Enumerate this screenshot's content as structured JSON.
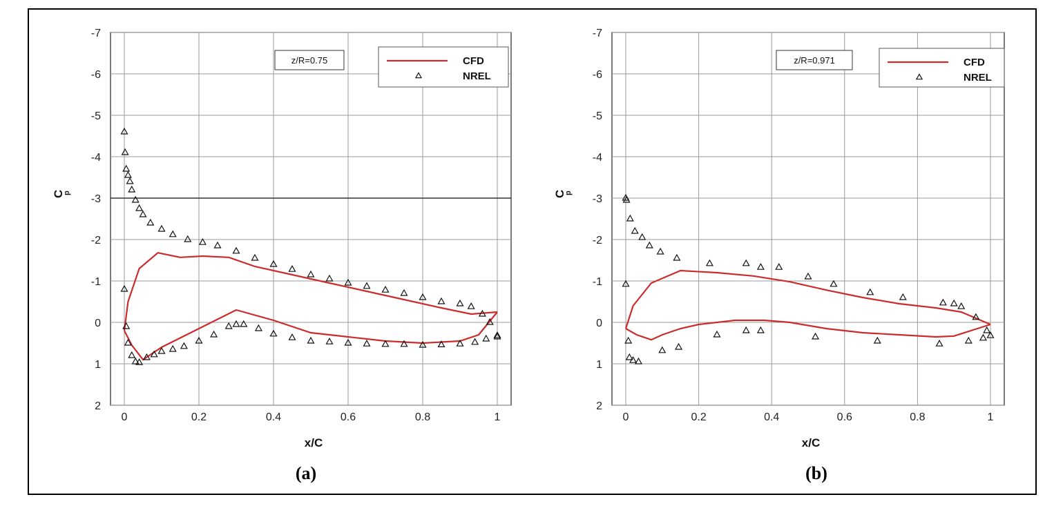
{
  "chart_data": [
    {
      "type": "line",
      "caption": "(a)",
      "xlabel": "x/C",
      "ylabel": "C",
      "ylabel_sub": "p",
      "annotation": "z/R=0.75",
      "xlim": [
        0,
        1
      ],
      "ylim": [
        2,
        -7
      ],
      "y_reversed": true,
      "grid": true,
      "legend_position": "top-right",
      "x_ticks": [
        "0",
        "0.2",
        "0.4",
        "0.6",
        "0.8",
        "1"
      ],
      "y_ticks": [
        "-7",
        "-6",
        "-5",
        "-4",
        "-3",
        "-2",
        "-1",
        "0",
        "1",
        "2"
      ],
      "colors": {
        "cfd": "#cc2b2b",
        "nrel": "#111111"
      },
      "series": [
        {
          "name": "CFD",
          "style": "line",
          "upper": {
            "x": [
              0,
              0.01,
              0.04,
              0.09,
              0.15,
              0.21,
              0.28,
              0.35,
              0.45,
              0.55,
              0.65,
              0.75,
              0.85,
              0.93,
              1.0
            ],
            "y": [
              0.2,
              -0.5,
              -1.3,
              -1.68,
              -1.57,
              -1.6,
              -1.57,
              -1.35,
              -1.15,
              -0.95,
              -0.75,
              -0.55,
              -0.35,
              -0.2,
              -0.25
            ]
          },
          "lower": {
            "x": [
              0,
              0.02,
              0.05,
              0.1,
              0.2,
              0.3,
              0.4,
              0.5,
              0.6,
              0.7,
              0.8,
              0.9,
              0.95,
              1.0
            ],
            "y": [
              0.2,
              0.55,
              0.9,
              0.6,
              0.15,
              -0.3,
              -0.05,
              0.25,
              0.35,
              0.45,
              0.5,
              0.45,
              0.3,
              -0.25
            ]
          }
        },
        {
          "name": "NREL",
          "style": "marker",
          "upper": {
            "x": [
              0,
              0.002,
              0.005,
              0.01,
              0.015,
              0.02,
              0.03,
              0.04,
              0.05,
              0.07,
              0.1,
              0.13,
              0.17,
              0.21,
              0.25,
              0.3,
              0.35,
              0.4,
              0.45,
              0.5,
              0.55,
              0.6,
              0.65,
              0.7,
              0.75,
              0.8,
              0.85,
              0.9,
              0.93,
              0.96,
              0.98,
              1.0
            ],
            "y": [
              -4.6,
              -4.1,
              -3.7,
              -3.55,
              -3.4,
              -3.2,
              -2.95,
              -2.75,
              -2.6,
              -2.4,
              -2.25,
              -2.12,
              -2.0,
              -1.93,
              -1.85,
              -1.72,
              -1.55,
              -1.4,
              -1.28,
              -1.15,
              -1.05,
              -0.95,
              -0.87,
              -0.78,
              -0.7,
              -0.6,
              -0.5,
              -0.45,
              -0.38,
              -0.2,
              0.0,
              0.35
            ]
          },
          "lower": {
            "x": [
              0,
              0.005,
              0.01,
              0.02,
              0.03,
              0.04,
              0.06,
              0.08,
              0.1,
              0.13,
              0.16,
              0.2,
              0.24,
              0.28,
              0.3,
              0.32,
              0.36,
              0.4,
              0.45,
              0.5,
              0.55,
              0.6,
              0.65,
              0.7,
              0.75,
              0.8,
              0.85,
              0.9,
              0.94,
              0.97,
              1.0
            ],
            "y": [
              -0.8,
              0.1,
              0.5,
              0.8,
              0.95,
              0.97,
              0.85,
              0.78,
              0.7,
              0.65,
              0.58,
              0.45,
              0.3,
              0.1,
              0.05,
              0.05,
              0.15,
              0.28,
              0.37,
              0.45,
              0.47,
              0.5,
              0.52,
              0.53,
              0.53,
              0.55,
              0.54,
              0.52,
              0.48,
              0.4,
              0.32
            ]
          }
        }
      ]
    },
    {
      "type": "line",
      "caption": "(b)",
      "xlabel": "x/C",
      "ylabel": "C",
      "ylabel_sub": "p",
      "annotation": "z/R=0.971",
      "xlim": [
        0,
        1
      ],
      "ylim": [
        2,
        -7
      ],
      "y_reversed": true,
      "grid": true,
      "legend_position": "top-right",
      "x_ticks": [
        "0",
        "0.2",
        "0.4",
        "0.6",
        "0.8",
        "1"
      ],
      "y_ticks": [
        "-7",
        "-6",
        "-5",
        "-4",
        "-3",
        "-2",
        "-1",
        "0",
        "1",
        "2"
      ],
      "colors": {
        "cfd": "#cc2b2b",
        "nrel": "#111111"
      },
      "series": [
        {
          "name": "CFD",
          "style": "line",
          "upper": {
            "x": [
              0,
              0.02,
              0.07,
              0.15,
              0.25,
              0.35,
              0.45,
              0.55,
              0.65,
              0.75,
              0.85,
              0.92,
              1.0
            ],
            "y": [
              0.15,
              -0.4,
              -0.95,
              -1.25,
              -1.2,
              -1.12,
              -0.98,
              -0.78,
              -0.6,
              -0.45,
              -0.35,
              -0.25,
              0.05
            ]
          },
          "lower": {
            "x": [
              0,
              0.03,
              0.07,
              0.1,
              0.15,
              0.2,
              0.3,
              0.38,
              0.45,
              0.55,
              0.65,
              0.75,
              0.85,
              0.9,
              1.0
            ],
            "y": [
              0.15,
              0.3,
              0.42,
              0.3,
              0.15,
              0.05,
              -0.05,
              -0.05,
              0.0,
              0.15,
              0.25,
              0.3,
              0.35,
              0.33,
              0.05
            ]
          }
        },
        {
          "name": "NREL",
          "style": "marker",
          "upper": {
            "x": [
              0,
              0.002,
              0.012,
              0.025,
              0.045,
              0.065,
              0.095,
              0.14,
              0.23,
              0.33,
              0.37,
              0.42,
              0.5,
              0.57,
              0.67,
              0.76,
              0.87,
              0.9,
              0.92,
              0.96,
              0.99
            ],
            "y": [
              -3.0,
              -2.95,
              -2.5,
              -2.2,
              -2.05,
              -1.85,
              -1.7,
              -1.55,
              -1.42,
              -1.42,
              -1.33,
              -1.33,
              -1.1,
              -0.92,
              -0.72,
              -0.6,
              -0.47,
              -0.45,
              -0.38,
              -0.12,
              0.2
            ]
          },
          "lower": {
            "x": [
              0,
              0.007,
              0.01,
              0.02,
              0.035,
              0.1,
              0.145,
              0.25,
              0.33,
              0.37,
              0.52,
              0.69,
              0.86,
              0.94,
              0.98,
              1.0
            ],
            "y": [
              -0.92,
              0.45,
              0.85,
              0.92,
              0.95,
              0.68,
              0.6,
              0.3,
              0.2,
              0.2,
              0.35,
              0.45,
              0.52,
              0.45,
              0.38,
              0.32
            ]
          }
        }
      ]
    }
  ]
}
